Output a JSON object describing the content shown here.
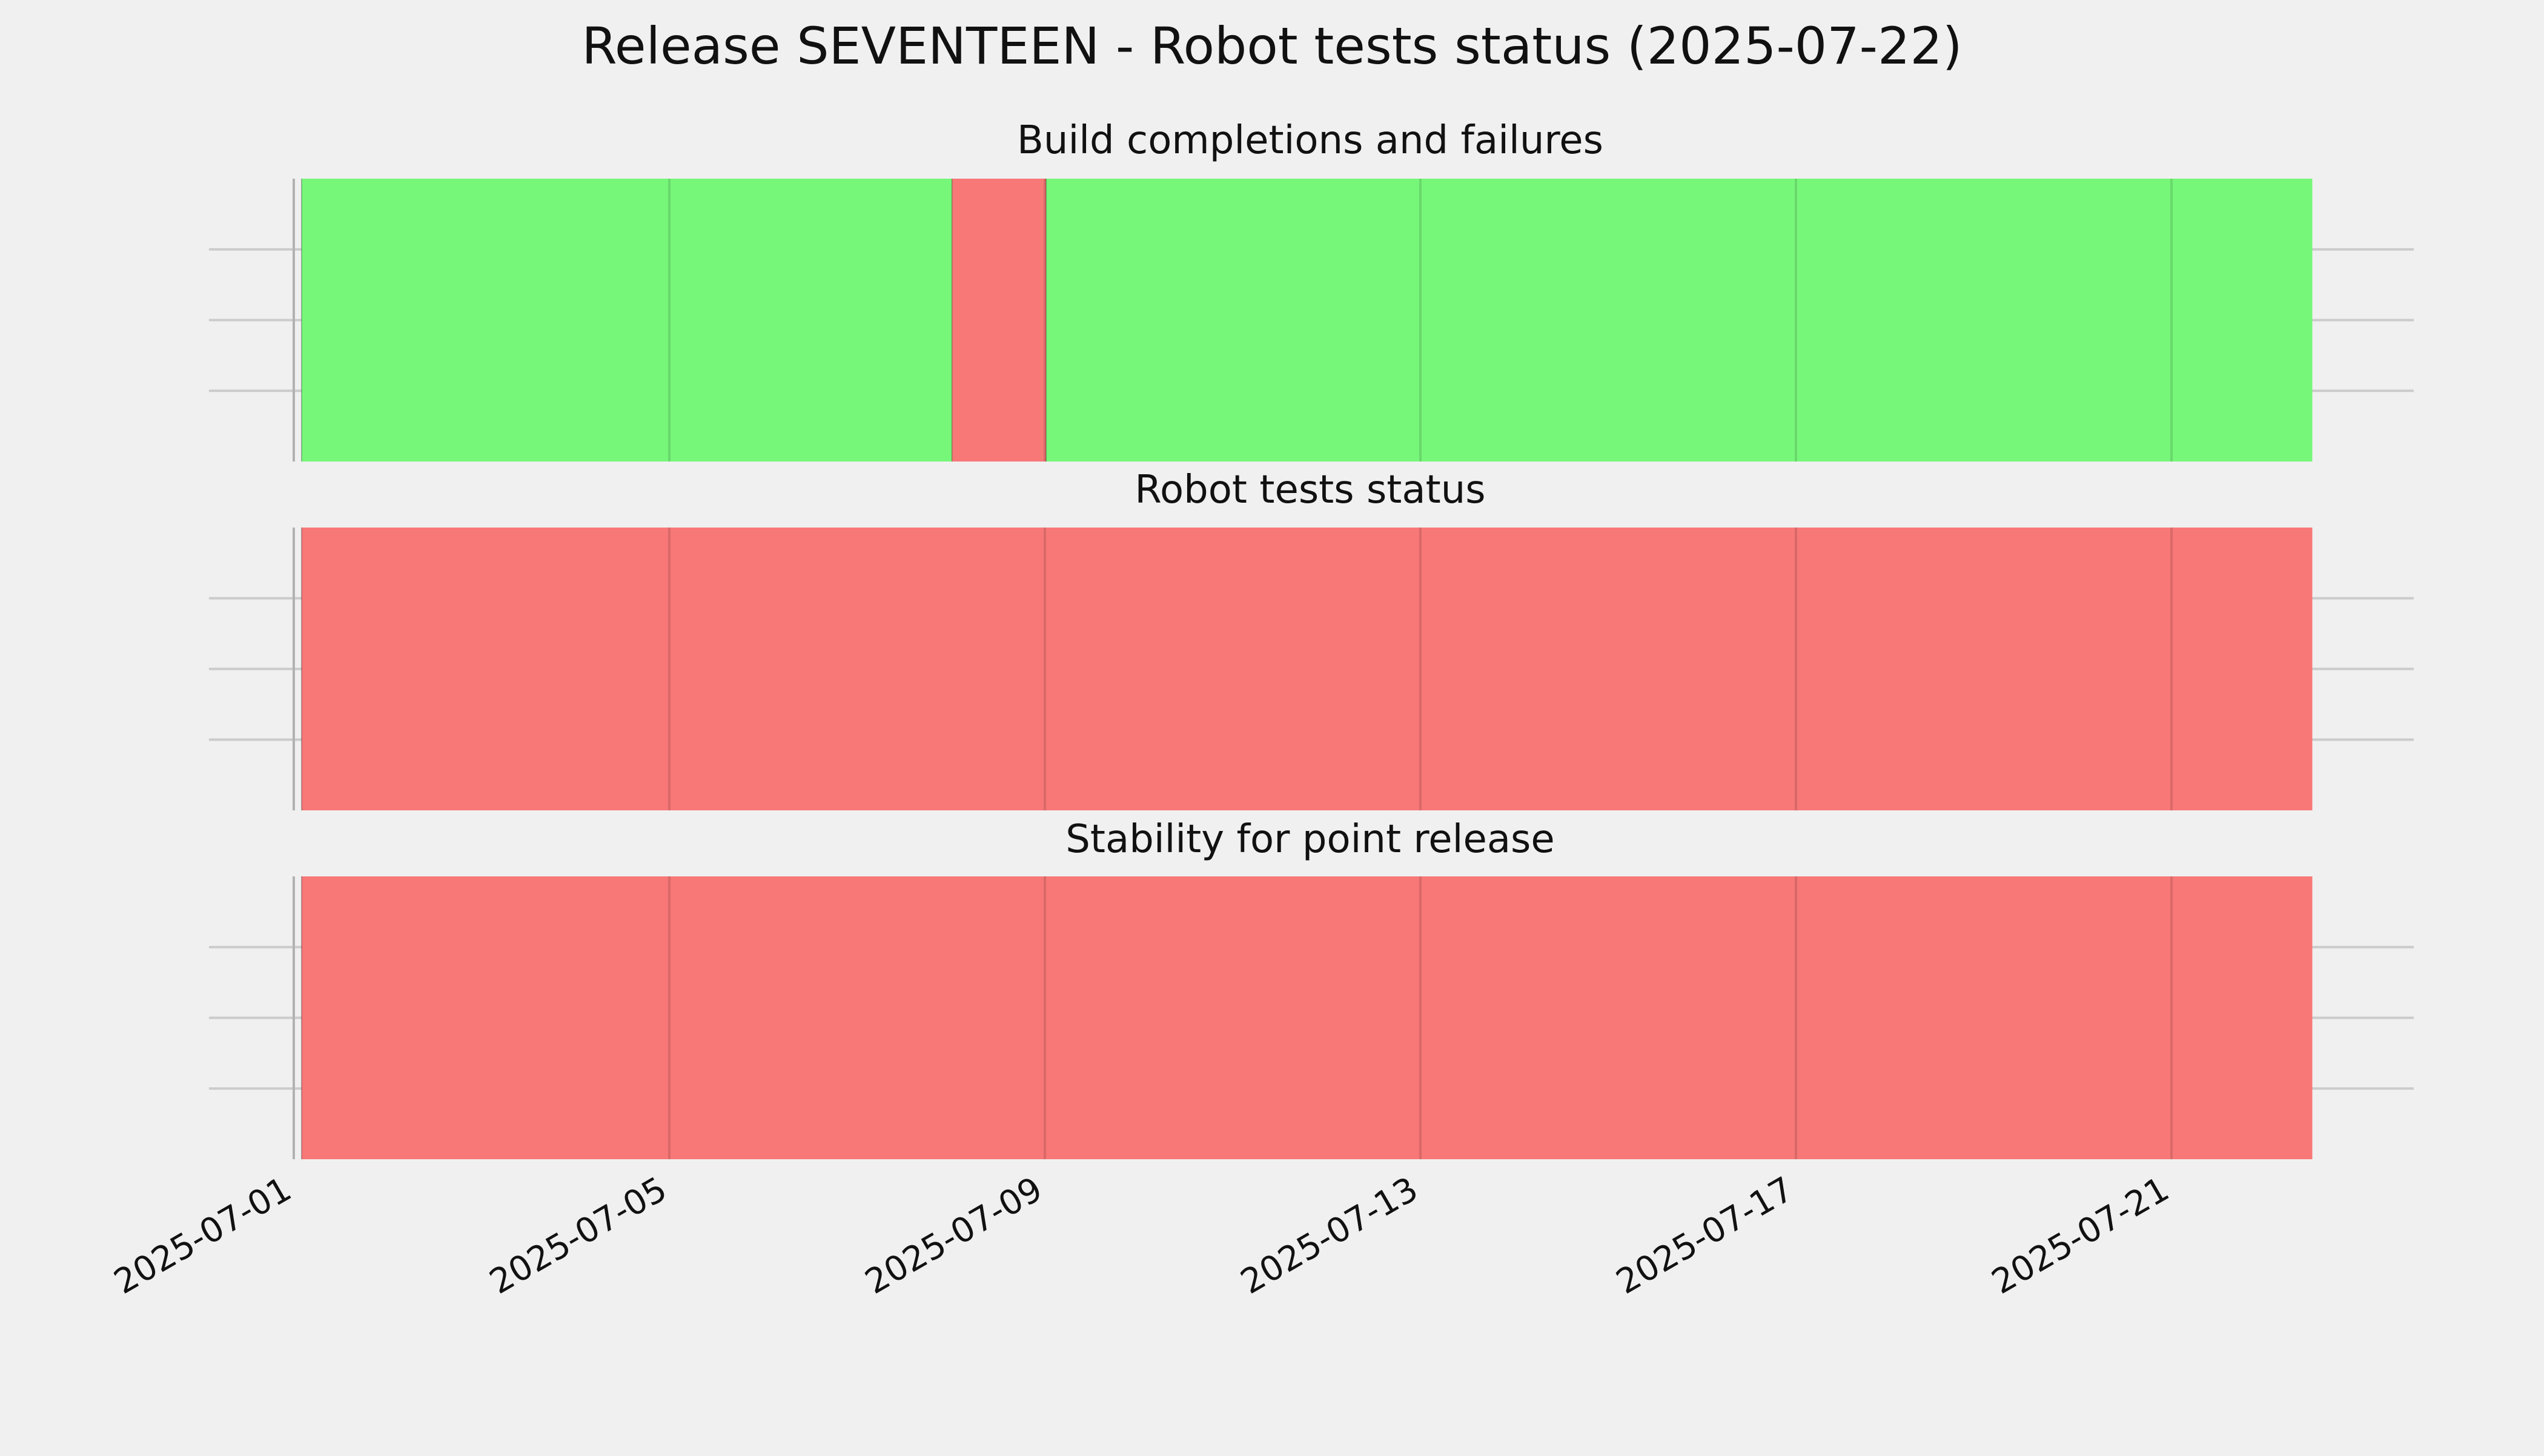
{
  "colors": {
    "background": "#f0f0f0",
    "pass": "#77f77a",
    "fail": "#f77877",
    "grid": "#cbcbcb",
    "text": "#111111"
  },
  "chart_data": {
    "type": "timeline",
    "title": "Release SEVENTEEN - Robot tests status (2025-07-22)",
    "x_axis": {
      "type": "date",
      "range": [
        "2025-07-01T00:00",
        "2025-07-23T12:00"
      ],
      "ticks": [
        "2025-07-01",
        "2025-07-05",
        "2025-07-09",
        "2025-07-13",
        "2025-07-17",
        "2025-07-21"
      ],
      "tick_label_rotation": 30
    },
    "grid": true,
    "panels": [
      {
        "title": "Build completions and failures",
        "segments": [
          {
            "start": "2025-07-01T02:00",
            "end": "2025-07-08T00:15",
            "status": "pass"
          },
          {
            "start": "2025-07-08T00:15",
            "end": "2025-07-09T00:20",
            "status": "fail"
          },
          {
            "start": "2025-07-09T00:20",
            "end": "2025-07-22T12:00",
            "status": "pass"
          }
        ]
      },
      {
        "title": "Robot tests status",
        "segments": [
          {
            "start": "2025-07-01T02:00",
            "end": "2025-07-22T12:00",
            "status": "fail"
          }
        ]
      },
      {
        "title": "Stability for point release",
        "segments": [
          {
            "start": "2025-07-01T02:00",
            "end": "2025-07-22T12:00",
            "status": "fail"
          }
        ]
      }
    ]
  }
}
